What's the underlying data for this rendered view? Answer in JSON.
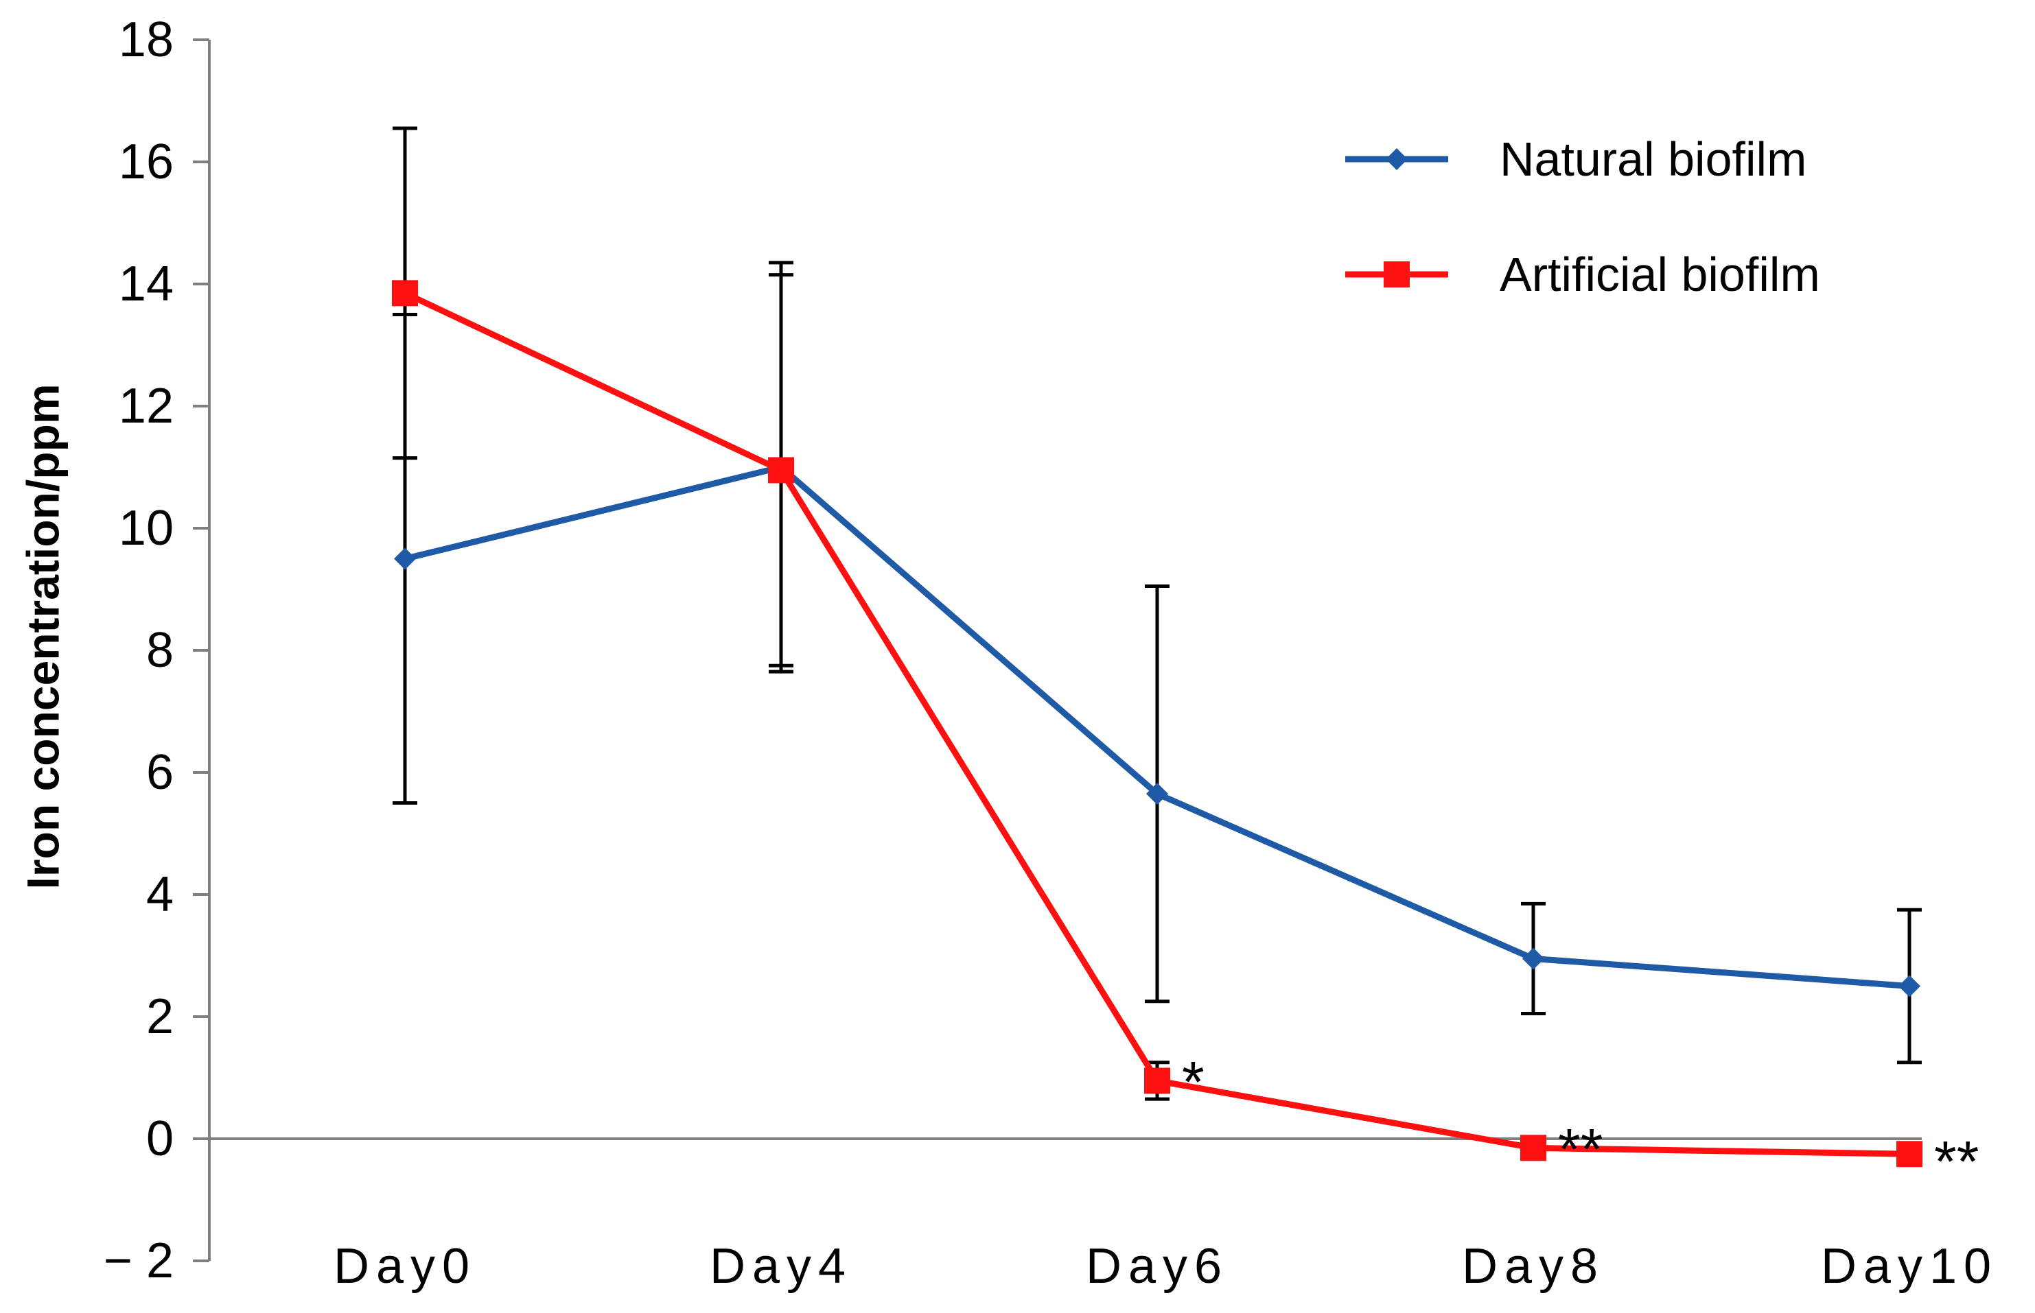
{
  "chart_data": {
    "type": "line",
    "title": "",
    "xlabel": "",
    "ylabel": "Iron concentration/ppm",
    "ylim": [
      -2,
      18
    ],
    "yticks": [
      -2,
      0,
      2,
      4,
      6,
      8,
      10,
      12,
      14,
      16,
      18
    ],
    "ytick_labels": [
      "− 2",
      "0",
      "2",
      "4",
      "6",
      "8",
      "10",
      "12",
      "14",
      "16",
      "18"
    ],
    "categories": [
      "Day0",
      "Day4",
      "Day6",
      "Day8",
      "Day10"
    ],
    "grid": false,
    "legend_position": "top-right",
    "series": [
      {
        "name": "Natural biofilm",
        "color": "#1f5aa6",
        "marker": "diamond",
        "values": [
          9.5,
          11.0,
          5.65,
          2.95,
          2.5
        ],
        "error": [
          4.0,
          3.35,
          3.4,
          0.9,
          1.25
        ]
      },
      {
        "name": "Artificial biofilm",
        "color": "#ff1010",
        "marker": "square",
        "values": [
          13.85,
          10.95,
          0.95,
          -0.15,
          -0.25
        ],
        "error": [
          2.7,
          3.2,
          0.3,
          0.05,
          0.05
        ]
      }
    ],
    "annotations": [
      {
        "text": "*",
        "category": "Day6",
        "y": 1.1
      },
      {
        "text": "**",
        "category": "Day8",
        "y": 0.0
      },
      {
        "text": "**",
        "category": "Day10",
        "y": -0.2
      }
    ]
  }
}
